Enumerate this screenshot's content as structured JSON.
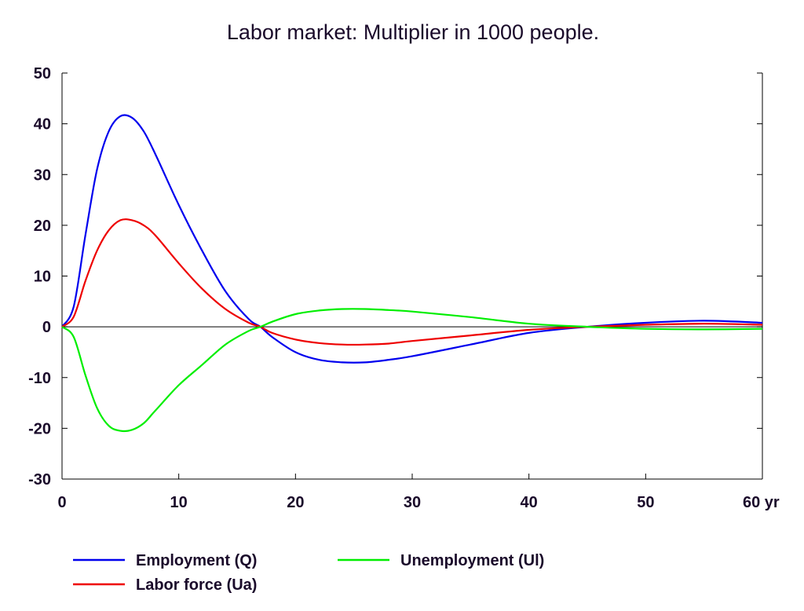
{
  "chart_data": {
    "type": "line",
    "title": "Labor market: Multiplier in 1000 people.",
    "xlim": [
      0,
      60
    ],
    "ylim": [
      -30,
      50
    ],
    "x_ticks": [
      0,
      10,
      20,
      30,
      40,
      50,
      60
    ],
    "x_tick_labels": [
      "0",
      "10",
      "20",
      "30",
      "40",
      "50",
      "60 yr"
    ],
    "y_ticks": [
      50,
      40,
      30,
      20,
      10,
      0,
      -10,
      -20,
      -30
    ],
    "y_tick_labels": [
      "50",
      "40",
      "30",
      "20",
      "10",
      "0",
      "-10",
      "-20",
      "-30"
    ],
    "zero_line": true,
    "grid": false,
    "legend_position": "bottom",
    "x": [
      0,
      1,
      2,
      3,
      4,
      5,
      6,
      7,
      8,
      10,
      12,
      14,
      16,
      17,
      18,
      20,
      22,
      24,
      26,
      28,
      30,
      35,
      40,
      45,
      50,
      55,
      60
    ],
    "series": [
      {
        "name": "Employment (Q)",
        "color": "#0000ee",
        "values": [
          0,
          4,
          18,
          31,
          38.5,
          41.5,
          41.2,
          38.5,
          34,
          24,
          15,
          7,
          1.5,
          0,
          -2,
          -5,
          -6.5,
          -7,
          -7,
          -6.5,
          -5.8,
          -3.5,
          -1.2,
          0,
          0.8,
          1.2,
          0.8
        ]
      },
      {
        "name": "Labor force (Ua)",
        "color": "#ee0000",
        "values": [
          0,
          2,
          9,
          15,
          19,
          21,
          21,
          20,
          18,
          12.5,
          7.5,
          3.5,
          0.8,
          0,
          -1.2,
          -2.5,
          -3.2,
          -3.5,
          -3.5,
          -3.3,
          -2.8,
          -1.7,
          -0.6,
          0,
          0.4,
          0.6,
          0.4
        ]
      },
      {
        "name": "Unemployment (Ul)",
        "color": "#00ee00",
        "values": [
          0,
          -2,
          -9.5,
          -16,
          -19.5,
          -20.5,
          -20.3,
          -19,
          -16.5,
          -11.5,
          -7.5,
          -3.5,
          -0.8,
          0,
          1,
          2.5,
          3.2,
          3.5,
          3.5,
          3.3,
          3,
          1.9,
          0.6,
          0,
          -0.4,
          -0.5,
          -0.4
        ]
      }
    ]
  }
}
